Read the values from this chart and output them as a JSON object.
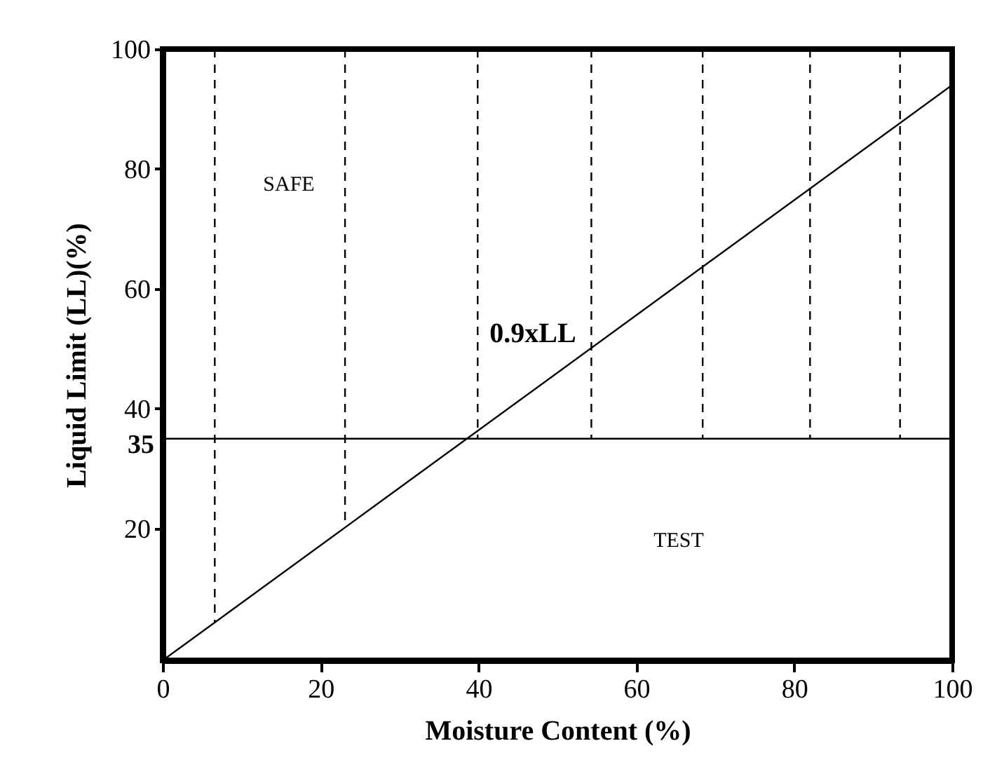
{
  "chart_data": {
    "type": "line",
    "xlabel": "Moisture Content (%)",
    "ylabel": "Liquid Limit (LL)(%)",
    "xlim": [
      0,
      100
    ],
    "ylim": [
      -2,
      100
    ],
    "xticks": [
      0,
      20,
      40,
      60,
      80,
      100
    ],
    "yticks": [
      20,
      40,
      60,
      80,
      100
    ],
    "grid": false,
    "marker": "none",
    "series": [
      {
        "x": [
          0,
          100
        ],
        "values": [
          -2,
          94
        ],
        "color": "#000000",
        "line_style": "solid"
      },
      {
        "x": [
          6.6,
          6.6
        ],
        "values": [
          100,
          4.3
        ],
        "color": "#000000",
        "line_style": "dashed"
      },
      {
        "x": [
          23.1,
          23.1
        ],
        "values": [
          100,
          20.2
        ],
        "color": "#000000",
        "line_style": "dashed"
      },
      {
        "x": [
          39.9,
          39.9
        ],
        "values": [
          100,
          35
        ],
        "color": "#000000",
        "line_style": "dashed"
      },
      {
        "x": [
          54.3,
          54.3
        ],
        "values": [
          100,
          35
        ],
        "color": "#000000",
        "line_style": "dashed"
      },
      {
        "x": [
          68.4,
          68.4
        ],
        "values": [
          100,
          35
        ],
        "color": "#000000",
        "line_style": "dashed"
      },
      {
        "x": [
          82,
          82
        ],
        "values": [
          100,
          35
        ],
        "color": "#000000",
        "line_style": "dashed"
      },
      {
        "x": [
          93.4,
          93.4
        ],
        "values": [
          100,
          35
        ],
        "color": "#000000",
        "line_style": "dashed"
      }
    ],
    "ref_lines": [
      {
        "axis": "y",
        "value": 35,
        "label": "35"
      }
    ],
    "annotations": [
      "SAFE",
      "0.9xLL",
      "TEST"
    ]
  }
}
